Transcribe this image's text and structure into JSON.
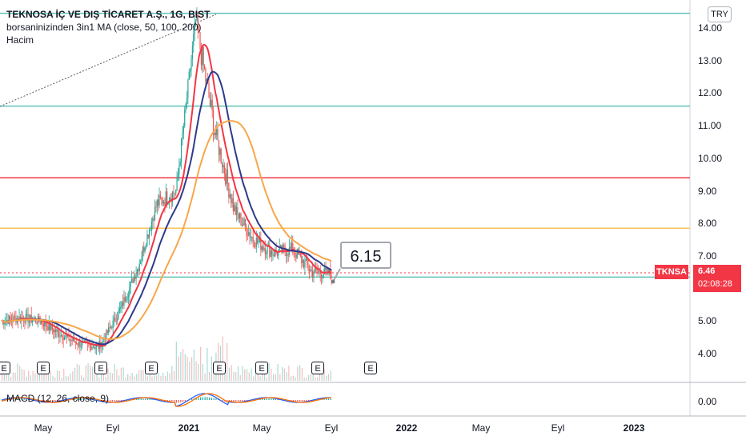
{
  "legend": {
    "title": "TEKNOSA İÇ VE DIŞ TİCARET A.Ş., 1G, BIST",
    "ma": "borsaninizinden 3in1 MA (close, 50, 100, 200)",
    "volume": "Hacim"
  },
  "currency": "TRY",
  "ticker_tag": "TKNSA",
  "price_box": {
    "price": "6.46",
    "countdown": "02:08:28"
  },
  "callout": "6.15",
  "macd_label": "MACD (12, 26, close, 9)",
  "earnings_label": "E",
  "macd_axis": "0.00",
  "colors": {
    "candle_up": "#26a69a",
    "candle_down": "#ef5350",
    "ma50": "#f23645",
    "ma100": "#2e3a8c",
    "ma200": "#f7a74a",
    "hline_teal": "#5fc4b7",
    "hline_red": "#f23645",
    "hline_orange": "#fbc05a"
  },
  "chart_data": {
    "type": "candlestick",
    "x_ticks": [
      "May",
      "Eyl",
      "2021",
      "May",
      "Eyl",
      "2022",
      "May",
      "Eyl",
      "2023"
    ],
    "y_ticks": [
      "14.00",
      "13.00",
      "12.00",
      "11.00",
      "10.00",
      "9.00",
      "8.00",
      "7.00",
      "6.00",
      "5.00",
      "4.00"
    ],
    "y_range": [
      3.5,
      14.5
    ],
    "horizontal_levels": [
      {
        "value": 14.45,
        "color": "teal"
      },
      {
        "value": 11.6,
        "color": "teal"
      },
      {
        "value": 9.4,
        "color": "red"
      },
      {
        "value": 7.85,
        "color": "orange"
      },
      {
        "value": 6.35,
        "color": "teal"
      }
    ],
    "close_series": [
      {
        "t": "2020-04",
        "close": 5.0
      },
      {
        "t": "2020-05",
        "close": 5.1
      },
      {
        "t": "2020-06",
        "close": 5.0
      },
      {
        "t": "2020-07",
        "close": 4.6
      },
      {
        "t": "2020-08",
        "close": 4.3
      },
      {
        "t": "2020-09",
        "close": 4.2
      },
      {
        "t": "2020-10",
        "close": 5.2
      },
      {
        "t": "2020-11",
        "close": 6.6
      },
      {
        "t": "2020-12",
        "close": 8.6
      },
      {
        "t": "2021-01",
        "close": 9.0
      },
      {
        "t": "2021-02",
        "close": 14.2
      },
      {
        "t": "2021-03",
        "close": 10.8
      },
      {
        "t": "2021-04",
        "close": 8.4
      },
      {
        "t": "2021-05",
        "close": 7.5
      },
      {
        "t": "2021-06",
        "close": 7.1
      },
      {
        "t": "2021-07",
        "close": 7.2
      },
      {
        "t": "2021-08",
        "close": 6.5
      },
      {
        "t": "2021-09",
        "close": 6.46
      }
    ],
    "last_price": 6.46
  }
}
